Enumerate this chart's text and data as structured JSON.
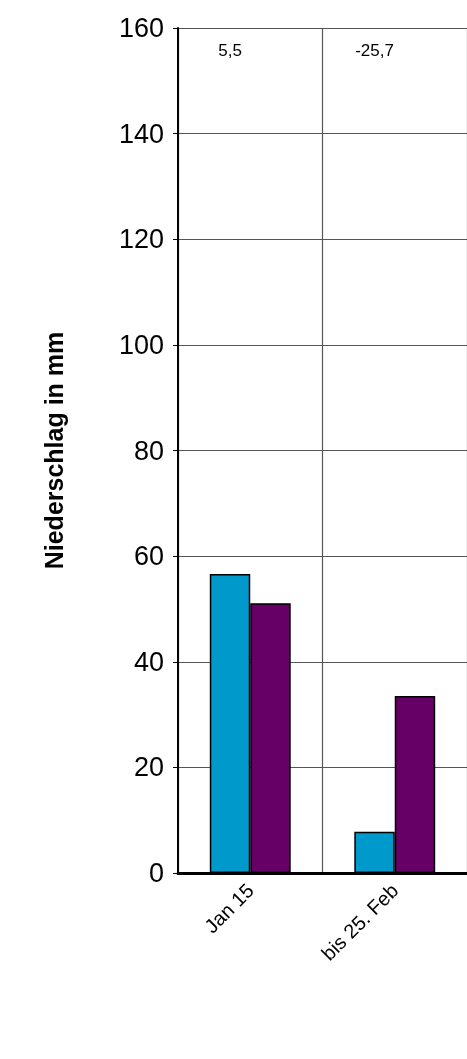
{
  "chart_data": {
    "type": "bar",
    "ylabel": "Niederschlag in mm",
    "categories": [
      "Jan 15",
      "bis 25. Feb"
    ],
    "series": [
      {
        "color": "#0099cc",
        "values": [
          56.6,
          7.8
        ]
      },
      {
        "color": "#660066",
        "values": [
          51.1,
          33.5
        ]
      }
    ],
    "ylim": [
      0,
      160
    ],
    "yticks": [
      0,
      20,
      40,
      60,
      80,
      100,
      120,
      140,
      160
    ],
    "grid": true,
    "annotations": [
      "5,5",
      "-25,7"
    ]
  }
}
